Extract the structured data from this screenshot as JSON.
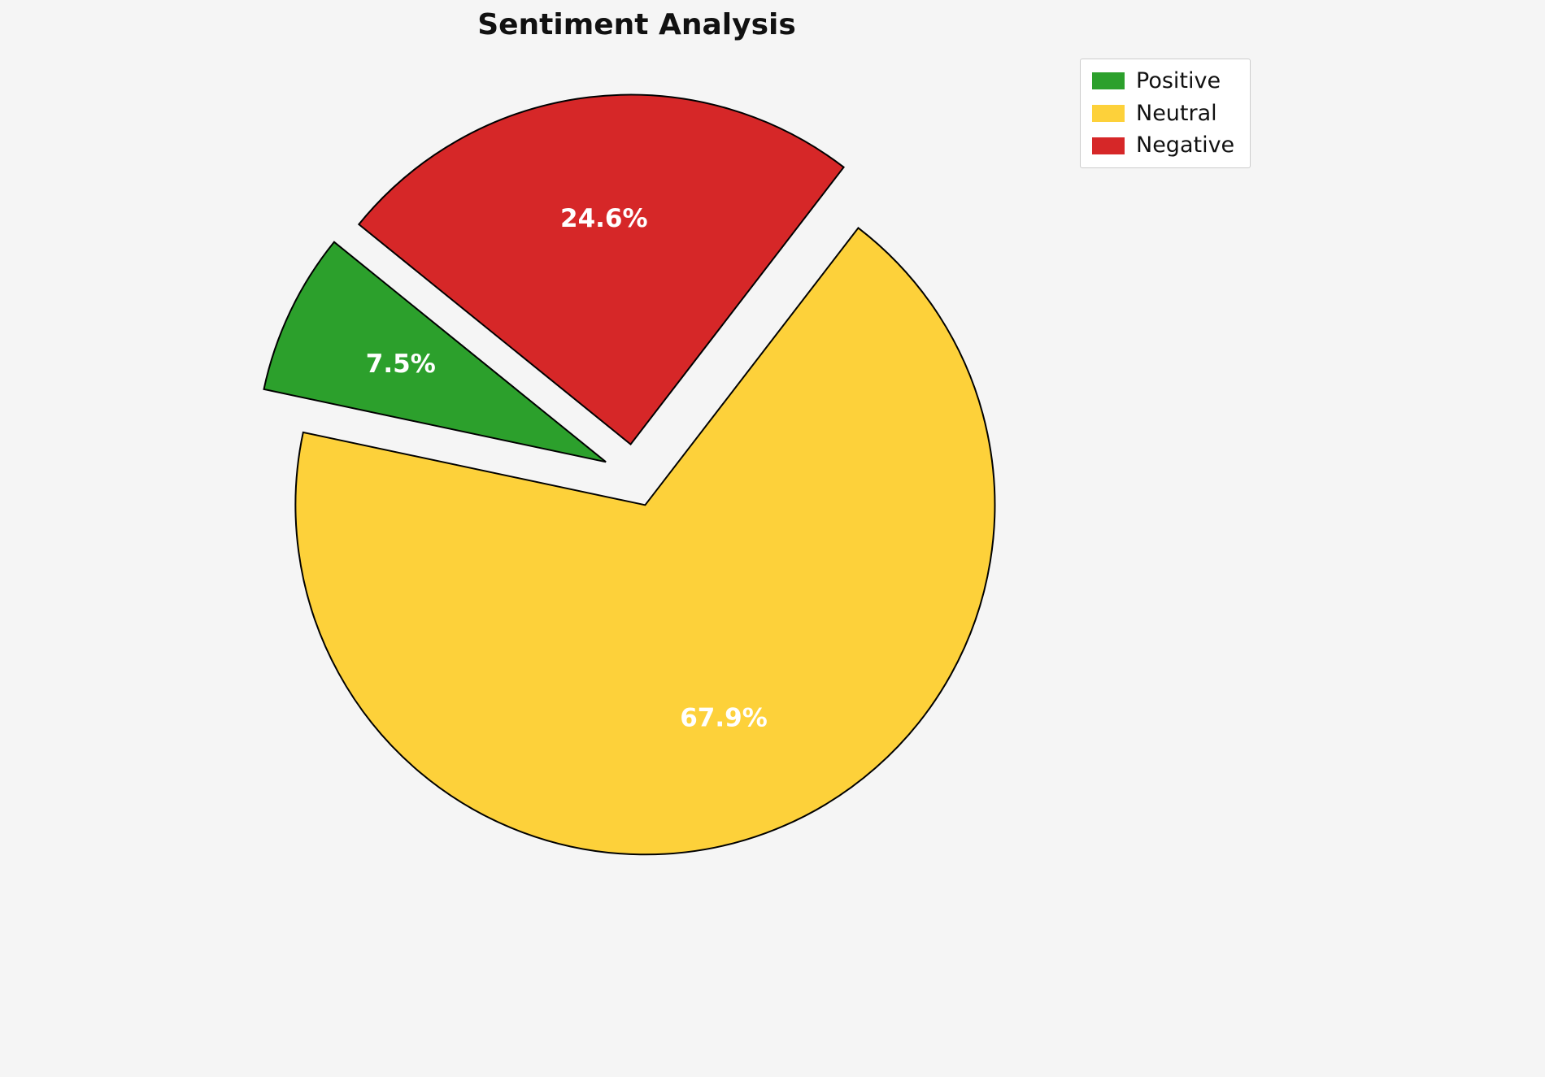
{
  "chart_data": {
    "type": "pie",
    "title": "Sentiment Analysis",
    "labels": [
      "Positive",
      "Neutral",
      "Negative"
    ],
    "values": [
      7.5,
      67.9,
      24.6
    ],
    "pct_labels": [
      "7.5%",
      "67.9%",
      "24.6%"
    ],
    "colors": [
      "#2ca02c",
      "#fdd13a",
      "#d62728"
    ],
    "label_color": "#ffffff",
    "edge_color": "#000000",
    "background": "#f5f5f5",
    "legend_position": "upper right",
    "legend_entries": [
      "Positive",
      "Neutral",
      "Negative"
    ],
    "startangle": 141,
    "counterclock": true,
    "explode": [
      0.09,
      0.09,
      0.09
    ]
  }
}
